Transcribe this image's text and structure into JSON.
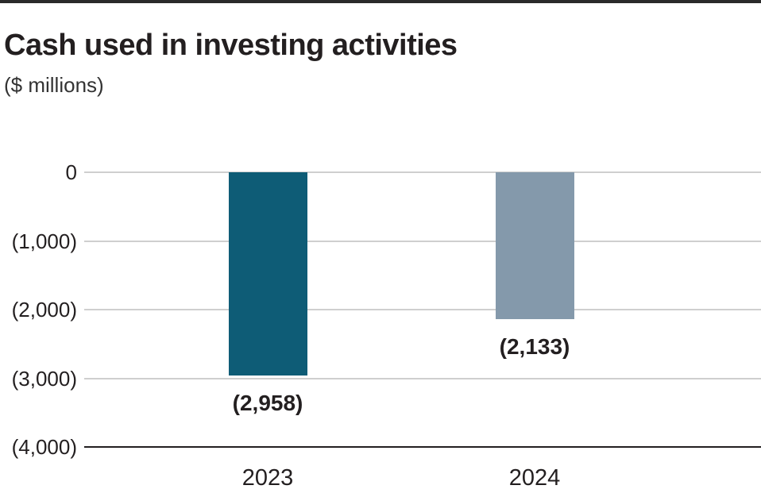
{
  "page": {
    "title": "Cash used in investing activities",
    "subtitle": "($ millions)"
  },
  "colors": {
    "bar_2023_teal": "#0E5C76",
    "bar_2024_gray_blue": "#8499AB",
    "text": "#231F20",
    "gridline": "#CFCFCF",
    "axis_baseline": "#231F20",
    "top_rule": "#2B2B2B"
  },
  "chart_data": {
    "type": "bar",
    "title": "Cash used in investing activities",
    "subtitle": "($ millions)",
    "categories": [
      "2023",
      "2024"
    ],
    "values": [
      -2958,
      -2133
    ],
    "value_labels": [
      "(2,958)",
      "(2,133)"
    ],
    "bar_colors": [
      "#0E5C76",
      "#8499AB"
    ],
    "xlabel": "",
    "ylabel": "",
    "ylim": [
      -4000,
      0
    ],
    "ytick_values": [
      0,
      -1000,
      -2000,
      -3000,
      -4000
    ],
    "ytick_labels": [
      "0",
      "(1,000)",
      "(2,000)",
      "(3,000)",
      "(4,000)"
    ],
    "grid": "horizontal",
    "legend": "none",
    "bars_drawn_from": "zero-baseline-downward"
  }
}
